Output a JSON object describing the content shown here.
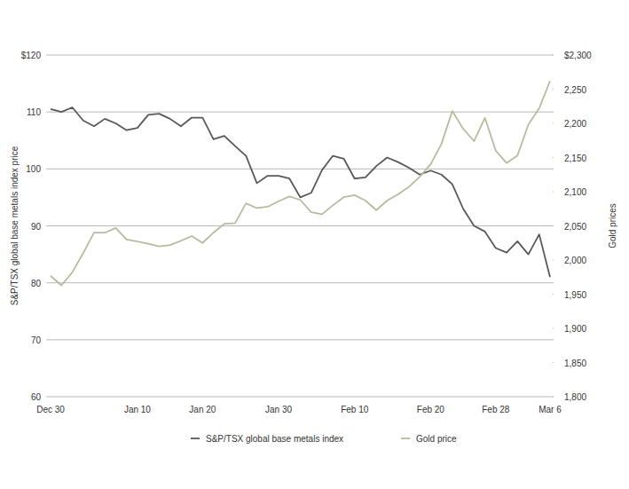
{
  "chart_data": {
    "type": "line",
    "categories": [
      "Dec 30",
      null,
      null,
      null,
      null,
      null,
      null,
      null,
      "Jan 10",
      null,
      null,
      null,
      null,
      null,
      "Jan 20",
      null,
      null,
      null,
      null,
      null,
      null,
      "Jan 30",
      null,
      null,
      null,
      null,
      null,
      null,
      "Feb 10",
      null,
      null,
      null,
      null,
      null,
      null,
      "Feb 20",
      null,
      null,
      null,
      null,
      null,
      "Feb 28",
      null,
      null,
      null,
      null,
      "Mar 6"
    ],
    "series": [
      {
        "name": "S&P/TSX global base metals index",
        "color": "#58595b",
        "axis": "y",
        "values": [
          110.5,
          110,
          110.8,
          108.5,
          107.5,
          108.8,
          108,
          106.8,
          107.2,
          109.5,
          109.7,
          108.8,
          107.5,
          109,
          109,
          105.2,
          105.8,
          104,
          102.3,
          97.5,
          98.8,
          98.8,
          98.3,
          95,
          95.8,
          99.8,
          102.3,
          101.8,
          98.3,
          98.5,
          100.5,
          102,
          101.2,
          100.2,
          99,
          99.7,
          99,
          97.3,
          93,
          90,
          89,
          86.1,
          85.3,
          87.3,
          85,
          88.5,
          81
        ]
      },
      {
        "name": "Gold price",
        "color": "#b8bb9e",
        "axis": "y2",
        "values": [
          1977,
          1963,
          1982,
          2010,
          2040,
          2040,
          2047,
          2030,
          2027,
          2024,
          2020,
          2022,
          2028,
          2035,
          2025,
          2040,
          2053,
          2054,
          2083,
          2076,
          2078,
          2086,
          2093,
          2088,
          2070,
          2067,
          2080,
          2092,
          2095,
          2087,
          2073,
          2087,
          2096,
          2107,
          2122,
          2140,
          2170,
          2218,
          2192,
          2174,
          2208,
          2160,
          2142,
          2153,
          2198,
          2222,
          2262
        ]
      }
    ],
    "ylabel": "S&P/TSX global base metals index price",
    "y2label": "Gold prices",
    "ylim": [
      60,
      120
    ],
    "yticks": [
      60,
      70,
      80,
      90,
      100,
      110,
      {
        "value": 120,
        "label": "$120"
      }
    ],
    "y2lim": [
      1800,
      2300
    ],
    "y2ticks": [
      {
        "value": 1800,
        "label": "1,800"
      },
      {
        "value": 1850,
        "label": "1,850"
      },
      {
        "value": 1900,
        "label": "1,900"
      },
      {
        "value": 1950,
        "label": "1,950"
      },
      {
        "value": 2000,
        "label": "2,000"
      },
      {
        "value": 2050,
        "label": "2,050"
      },
      {
        "value": 2100,
        "label": "2,100"
      },
      {
        "value": 2150,
        "label": "2,150"
      },
      {
        "value": 2200,
        "label": "2,200"
      },
      {
        "value": 2250,
        "label": "2,250"
      },
      {
        "value": 2300,
        "label": "$2,300"
      }
    ],
    "grid": true,
    "legend": "bottom"
  }
}
